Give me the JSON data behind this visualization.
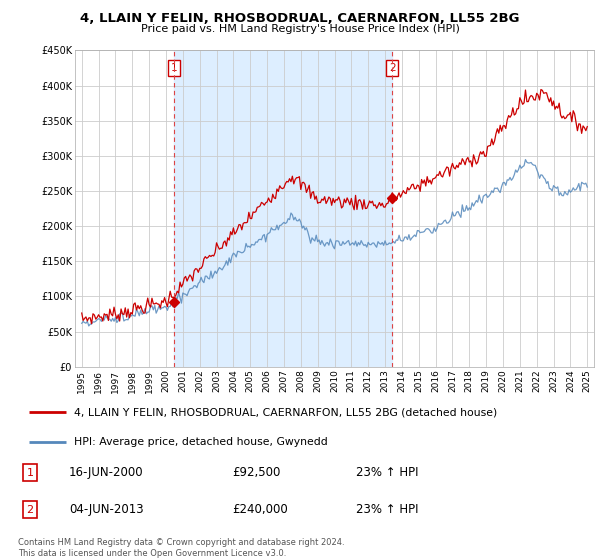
{
  "title": "4, LLAIN Y FELIN, RHOSBODRUAL, CAERNARFON, LL55 2BG",
  "subtitle": "Price paid vs. HM Land Registry's House Price Index (HPI)",
  "legend_label_red": "4, LLAIN Y FELIN, RHOSBODRUAL, CAERNARFON, LL55 2BG (detached house)",
  "legend_label_blue": "HPI: Average price, detached house, Gwynedd",
  "annotation1_label": "1",
  "annotation1_date": "16-JUN-2000",
  "annotation1_price": "£92,500",
  "annotation1_hpi": "23% ↑ HPI",
  "annotation2_label": "2",
  "annotation2_date": "04-JUN-2013",
  "annotation2_price": "£240,000",
  "annotation2_hpi": "23% ↑ HPI",
  "footer": "Contains HM Land Registry data © Crown copyright and database right 2024.\nThis data is licensed under the Open Government Licence v3.0.",
  "ylim": [
    0,
    450000
  ],
  "yticks": [
    0,
    50000,
    100000,
    150000,
    200000,
    250000,
    300000,
    350000,
    400000,
    450000
  ],
  "red_color": "#cc0000",
  "blue_color": "#5588bb",
  "vline_color": "#dd4444",
  "shade_color": "#ddeeff",
  "marker1_x": 2000.46,
  "marker1_y": 92500,
  "marker2_x": 2013.42,
  "marker2_y": 240000,
  "background_color": "#ffffff",
  "grid_color": "#cccccc",
  "xlim_left": 1994.6,
  "xlim_right": 2025.4
}
